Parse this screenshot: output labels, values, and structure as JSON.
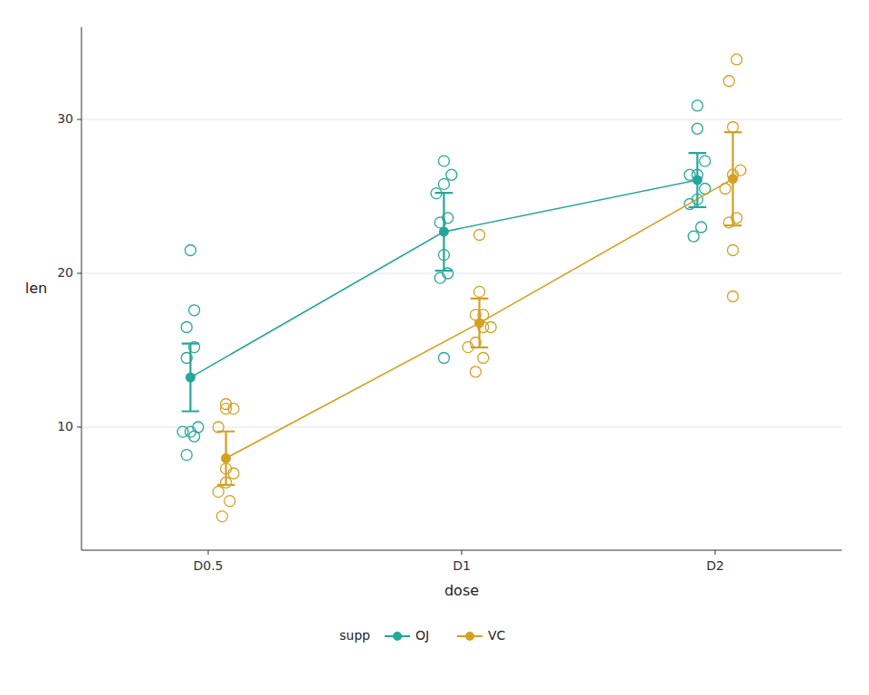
{
  "chart_data": {
    "type": "line",
    "x_label": "dose",
    "y_label": "len",
    "categories": [
      "D0.5",
      "D1",
      "D2"
    ],
    "series": [
      {
        "name": "OJ",
        "color": "#26A69A",
        "values": [
          13.23,
          22.7,
          26.06
        ],
        "ci_low": [
          11.03,
          20.17,
          24.3
        ],
        "ci_high": [
          15.43,
          25.23,
          27.82
        ],
        "points": [
          [
            15.2,
            21.5,
            17.6,
            9.7,
            14.5,
            10.0,
            8.2,
            9.4,
            16.5,
            9.7
          ],
          [
            19.7,
            23.3,
            23.6,
            26.4,
            20.0,
            25.2,
            25.8,
            21.2,
            14.5,
            27.3
          ],
          [
            25.5,
            26.4,
            22.4,
            24.5,
            24.8,
            30.9,
            26.4,
            27.3,
            29.4,
            23.0
          ]
        ]
      },
      {
        "name": "VC",
        "color": "#D4A020",
        "values": [
          7.98,
          16.77,
          26.14
        ],
        "ci_low": [
          6.24,
          15.18,
          23.11
        ],
        "ci_high": [
          9.72,
          18.36,
          29.17
        ],
        "points": [
          [
            4.2,
            11.5,
            7.3,
            5.8,
            6.4,
            10.0,
            11.2,
            11.2,
            5.2,
            7.0
          ],
          [
            16.5,
            16.5,
            15.2,
            17.3,
            22.5,
            17.3,
            13.6,
            14.5,
            18.8,
            15.5
          ],
          [
            23.6,
            18.5,
            33.9,
            25.5,
            26.4,
            32.5,
            26.7,
            21.5,
            23.3,
            29.5
          ]
        ]
      }
    ],
    "ylim": [
      2,
      36
    ],
    "yticks": [
      10,
      20,
      30
    ],
    "grid": true,
    "legend": "bottom",
    "legend_title": "supp"
  }
}
